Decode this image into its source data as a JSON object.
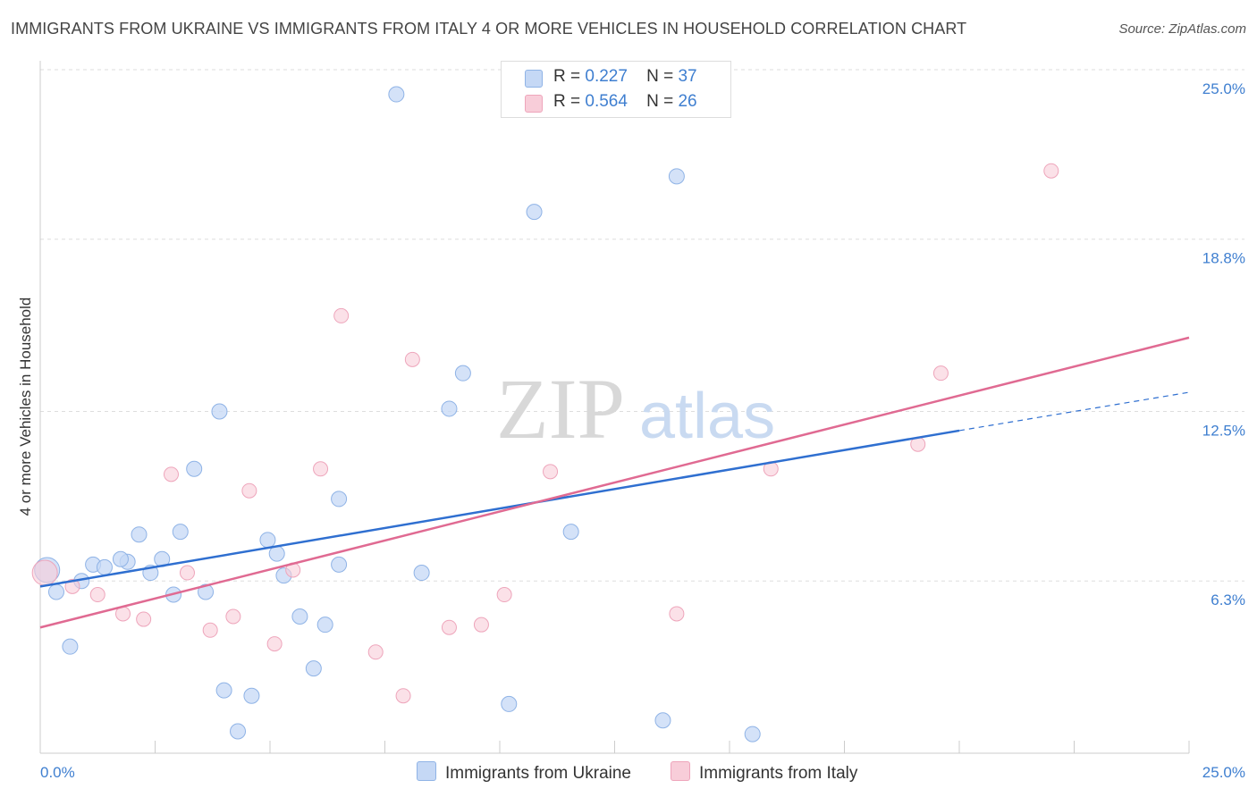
{
  "title": "IMMIGRANTS FROM UKRAINE VS IMMIGRANTS FROM ITALY 4 OR MORE VEHICLES IN HOUSEHOLD CORRELATION CHART",
  "source": "Source: ZipAtlas.com",
  "legend": {
    "ukraine": {
      "r_label": "R =",
      "r_value": "0.227",
      "n_label": "N =",
      "n_value": "37"
    },
    "italy": {
      "r_label": "R =",
      "r_value": "0.564",
      "n_label": "N =",
      "n_value": "26"
    }
  },
  "bottom_legend": {
    "ukraine": "Immigrants from Ukraine",
    "italy": "Immigrants from Italy"
  },
  "watermark": {
    "zip": "ZIP",
    "atlas": "atlas"
  },
  "colors": {
    "ukraine_fill": "#c5d8f5",
    "ukraine_stroke": "#8fb3e6",
    "ukraine_line": "#2f6fd0",
    "italy_fill": "#f8cdd9",
    "italy_stroke": "#eea5bb",
    "italy_line": "#e06a92"
  },
  "chart_data": {
    "type": "scatter",
    "title": "IMMIGRANTS FROM UKRAINE VS IMMIGRANTS FROM ITALY 4 OR MORE VEHICLES IN HOUSEHOLD CORRELATION CHART",
    "xlabel": "",
    "ylabel": "4 or more Vehicles in Household",
    "xlim": [
      0,
      25
    ],
    "ylim": [
      0,
      25
    ],
    "x_tick_labels": [
      "0.0%",
      "25.0%"
    ],
    "y_ticks": [
      6.3,
      12.5,
      18.8,
      25.0
    ],
    "y_tick_labels": [
      "6.3%",
      "12.5%",
      "18.8%",
      "25.0%"
    ],
    "grid": true,
    "series": [
      {
        "name": "Immigrants from Ukraine",
        "R": 0.227,
        "N": 37,
        "trend": {
          "x0": 0,
          "y0": 6.1,
          "x1": 20,
          "y1": 11.8,
          "dash_to_x": 25,
          "dash_to_y": 13.2
        },
        "points": [
          [
            0.15,
            6.7
          ],
          [
            0.35,
            5.9
          ],
          [
            0.65,
            3.9
          ],
          [
            0.9,
            6.3
          ],
          [
            1.15,
            6.9
          ],
          [
            1.4,
            6.8
          ],
          [
            1.9,
            7.0
          ],
          [
            1.75,
            7.1
          ],
          [
            2.15,
            8.0
          ],
          [
            2.4,
            6.6
          ],
          [
            2.65,
            7.1
          ],
          [
            2.9,
            5.8
          ],
          [
            3.05,
            8.1
          ],
          [
            3.35,
            10.4
          ],
          [
            3.6,
            5.9
          ],
          [
            3.9,
            12.5
          ],
          [
            4.0,
            2.3
          ],
          [
            4.3,
            0.8
          ],
          [
            4.6,
            2.1
          ],
          [
            4.95,
            7.8
          ],
          [
            5.15,
            7.3
          ],
          [
            5.3,
            6.5
          ],
          [
            5.65,
            5.0
          ],
          [
            5.95,
            3.1
          ],
          [
            6.2,
            4.7
          ],
          [
            6.5,
            6.9
          ],
          [
            6.5,
            9.3
          ],
          [
            7.75,
            24.1
          ],
          [
            8.3,
            6.6
          ],
          [
            8.9,
            12.6
          ],
          [
            9.2,
            13.9
          ],
          [
            10.2,
            1.8
          ],
          [
            10.75,
            19.8
          ],
          [
            11.55,
            8.1
          ],
          [
            13.55,
            1.2
          ],
          [
            13.85,
            21.1
          ],
          [
            15.5,
            0.7
          ]
        ]
      },
      {
        "name": "Immigrants from Italy",
        "R": 0.564,
        "N": 26,
        "trend": {
          "x0": 0,
          "y0": 4.6,
          "x1": 25,
          "y1": 15.2
        },
        "points": [
          [
            0.1,
            6.6
          ],
          [
            0.7,
            6.1
          ],
          [
            1.25,
            5.8
          ],
          [
            1.8,
            5.1
          ],
          [
            2.25,
            4.9
          ],
          [
            2.85,
            10.2
          ],
          [
            3.2,
            6.6
          ],
          [
            3.7,
            4.5
          ],
          [
            4.2,
            5.0
          ],
          [
            4.55,
            9.6
          ],
          [
            5.1,
            4.0
          ],
          [
            5.5,
            6.7
          ],
          [
            6.1,
            10.4
          ],
          [
            6.55,
            16.0
          ],
          [
            7.3,
            3.7
          ],
          [
            7.9,
            2.1
          ],
          [
            8.1,
            14.4
          ],
          [
            8.9,
            4.6
          ],
          [
            9.6,
            4.7
          ],
          [
            10.1,
            5.8
          ],
          [
            11.1,
            10.3
          ],
          [
            13.85,
            5.1
          ],
          [
            15.9,
            10.4
          ],
          [
            19.1,
            11.3
          ],
          [
            19.6,
            13.9
          ],
          [
            22.0,
            21.3
          ]
        ]
      }
    ]
  }
}
